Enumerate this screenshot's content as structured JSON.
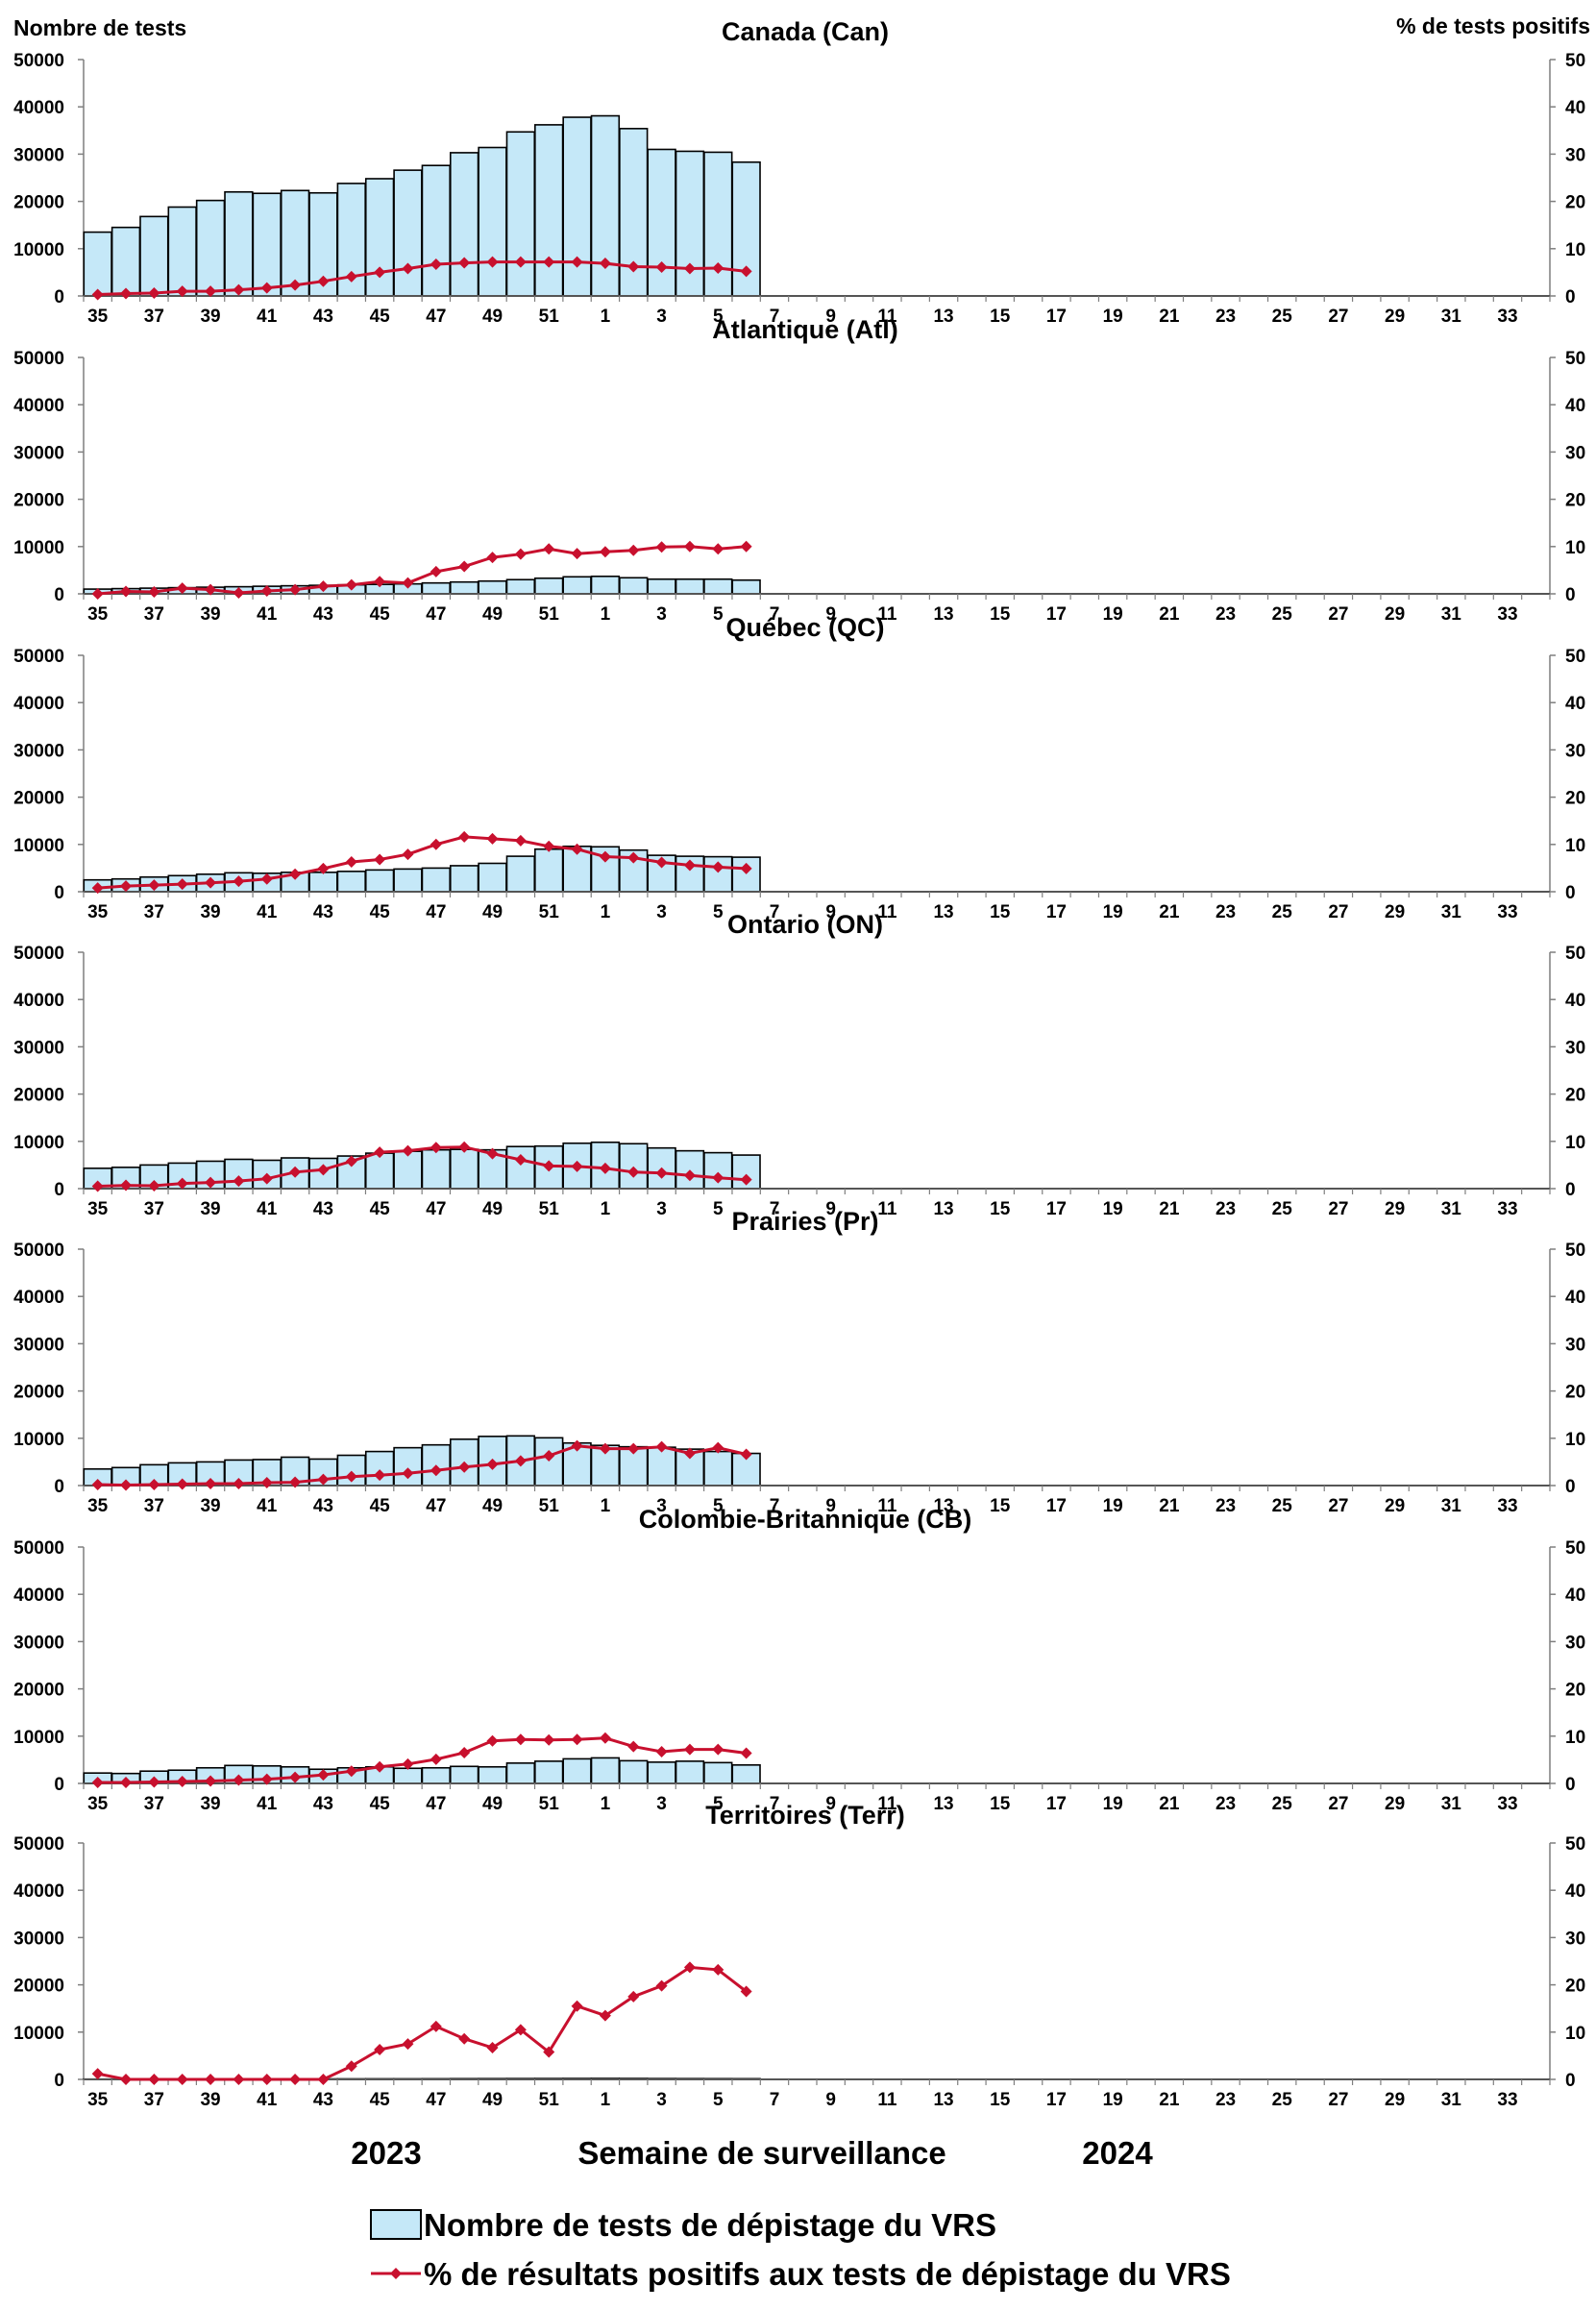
{
  "figure": {
    "left_axis_label": "Nombre de tests",
    "right_axis_label": "% de tests positifs",
    "x_axis_label": "Semaine de surveillance",
    "year_labels": [
      "2023",
      "2024"
    ]
  },
  "legend": {
    "bars_label": "Nombre de tests de dépistage du VRS",
    "line_label": "% de résultats positifs aux tests de dépistage du VRS"
  },
  "colors": {
    "bar_fill": "#c5e8f8",
    "bar_stroke": "#000000",
    "line": "#c8102e"
  },
  "chart_data": [
    {
      "type": "bar",
      "title": "Canada (Can)",
      "weeks": [
        "35",
        "36",
        "37",
        "38",
        "39",
        "40",
        "41",
        "42",
        "43",
        "44",
        "45",
        "46",
        "47",
        "48",
        "49",
        "50",
        "51",
        "52",
        "1",
        "2",
        "3",
        "4",
        "5",
        "6",
        "7",
        "8",
        "9",
        "10",
        "11",
        "12",
        "13",
        "14",
        "15",
        "16",
        "17",
        "18",
        "19",
        "20",
        "21",
        "22",
        "23",
        "24",
        "25",
        "26",
        "27",
        "28",
        "29",
        "30",
        "31",
        "32",
        "33",
        "34"
      ],
      "x_tick_labels": [
        "35",
        "37",
        "39",
        "41",
        "43",
        "45",
        "47",
        "49",
        "51",
        "1",
        "3",
        "5",
        "7",
        "9",
        "11",
        "13",
        "15",
        "17",
        "19",
        "21",
        "23",
        "25",
        "27",
        "29",
        "31",
        "33"
      ],
      "ylim": [
        0,
        50000
      ],
      "y_ticks": [
        0,
        10000,
        20000,
        30000,
        40000,
        50000
      ],
      "y2lim": [
        0,
        50
      ],
      "y2_ticks": [
        0,
        10,
        20,
        30,
        40,
        50
      ],
      "series": [
        {
          "name": "Nombre de tests de dépistage du VRS",
          "type": "bar",
          "values": [
            13500,
            14500,
            16800,
            18800,
            20200,
            22000,
            21700,
            22300,
            21800,
            23800,
            24800,
            26600,
            27600,
            30300,
            31400,
            34700,
            36200,
            37800,
            38100,
            35400,
            31000,
            30600,
            30400,
            28300
          ]
        },
        {
          "name": "% de résultats positifs aux tests de dépistage du VRS",
          "type": "line",
          "values": [
            0.3,
            0.5,
            0.6,
            1.0,
            1.0,
            1.3,
            1.7,
            2.3,
            3.1,
            4.1,
            5.0,
            5.8,
            6.7,
            7.0,
            7.2,
            7.2,
            7.2,
            7.2,
            6.9,
            6.2,
            6.1,
            5.8,
            5.9,
            5.2
          ]
        }
      ]
    },
    {
      "type": "bar",
      "title": "Atlantique (Atl)",
      "weeks": [
        "35",
        "36",
        "37",
        "38",
        "39",
        "40",
        "41",
        "42",
        "43",
        "44",
        "45",
        "46",
        "47",
        "48",
        "49",
        "50",
        "51",
        "52",
        "1",
        "2",
        "3",
        "4",
        "5",
        "6",
        "7",
        "8",
        "9",
        "10",
        "11",
        "12",
        "13",
        "14",
        "15",
        "16",
        "17",
        "18",
        "19",
        "20",
        "21",
        "22",
        "23",
        "24",
        "25",
        "26",
        "27",
        "28",
        "29",
        "30",
        "31",
        "32",
        "33",
        "34"
      ],
      "x_tick_labels": [
        "35",
        "37",
        "39",
        "41",
        "43",
        "45",
        "47",
        "49",
        "51",
        "1",
        "3",
        "5",
        "7",
        "9",
        "11",
        "13",
        "15",
        "17",
        "19",
        "21",
        "23",
        "25",
        "27",
        "29",
        "31",
        "33"
      ],
      "ylim": [
        0,
        50000
      ],
      "y_ticks": [
        0,
        10000,
        20000,
        30000,
        40000,
        50000
      ],
      "y2lim": [
        0,
        50
      ],
      "y2_ticks": [
        0,
        10,
        20,
        30,
        40,
        50
      ],
      "series": [
        {
          "name": "Nombre de tests de dépistage du VRS",
          "type": "bar",
          "values": [
            1000,
            1100,
            1200,
            1300,
            1400,
            1500,
            1600,
            1700,
            1800,
            1900,
            2000,
            2100,
            2300,
            2500,
            2700,
            3000,
            3300,
            3600,
            3700,
            3400,
            3100,
            3100,
            3100,
            2900
          ]
        },
        {
          "name": "% de résultats positifs aux tests de dépistage du VRS",
          "type": "line",
          "values": [
            0.0,
            0.5,
            0.4,
            1.2,
            0.9,
            0.2,
            0.6,
            0.9,
            1.6,
            1.9,
            2.6,
            2.3,
            4.7,
            5.8,
            7.7,
            8.4,
            9.5,
            8.5,
            8.9,
            9.2,
            9.9,
            10.0,
            9.5,
            10.0
          ]
        }
      ]
    },
    {
      "type": "bar",
      "title": "Québec (QC)",
      "weeks": [
        "35",
        "36",
        "37",
        "38",
        "39",
        "40",
        "41",
        "42",
        "43",
        "44",
        "45",
        "46",
        "47",
        "48",
        "49",
        "50",
        "51",
        "52",
        "1",
        "2",
        "3",
        "4",
        "5",
        "6",
        "7",
        "8",
        "9",
        "10",
        "11",
        "12",
        "13",
        "14",
        "15",
        "16",
        "17",
        "18",
        "19",
        "20",
        "21",
        "22",
        "23",
        "24",
        "25",
        "26",
        "27",
        "28",
        "29",
        "30",
        "31",
        "32",
        "33",
        "34"
      ],
      "x_tick_labels": [
        "35",
        "37",
        "39",
        "41",
        "43",
        "45",
        "47",
        "49",
        "51",
        "1",
        "3",
        "5",
        "7",
        "9",
        "11",
        "13",
        "15",
        "17",
        "19",
        "21",
        "23",
        "25",
        "27",
        "29",
        "31",
        "33"
      ],
      "ylim": [
        0,
        50000
      ],
      "y_ticks": [
        0,
        10000,
        20000,
        30000,
        40000,
        50000
      ],
      "y2lim": [
        0,
        50
      ],
      "y2_ticks": [
        0,
        10,
        20,
        30,
        40,
        50
      ],
      "series": [
        {
          "name": "Nombre de tests de dépistage du VRS",
          "type": "bar",
          "values": [
            2500,
            2700,
            3100,
            3400,
            3700,
            4000,
            3900,
            4100,
            4100,
            4300,
            4600,
            4800,
            5000,
            5500,
            6000,
            7500,
            9000,
            9600,
            9500,
            8800,
            7700,
            7500,
            7400,
            7300
          ]
        },
        {
          "name": "% de résultats positifs aux tests de dépistage du VRS",
          "type": "line",
          "values": [
            0.8,
            1.2,
            1.4,
            1.6,
            1.9,
            2.2,
            2.7,
            3.7,
            4.9,
            6.3,
            6.8,
            7.9,
            10.0,
            11.6,
            11.2,
            10.8,
            9.6,
            9.0,
            7.4,
            7.2,
            6.2,
            5.6,
            5.2,
            4.9
          ]
        }
      ]
    },
    {
      "type": "bar",
      "title": "Ontario (ON)",
      "weeks": [
        "35",
        "36",
        "37",
        "38",
        "39",
        "40",
        "41",
        "42",
        "43",
        "44",
        "45",
        "46",
        "47",
        "48",
        "49",
        "50",
        "51",
        "52",
        "1",
        "2",
        "3",
        "4",
        "5",
        "6",
        "7",
        "8",
        "9",
        "10",
        "11",
        "12",
        "13",
        "14",
        "15",
        "16",
        "17",
        "18",
        "19",
        "20",
        "21",
        "22",
        "23",
        "24",
        "25",
        "26",
        "27",
        "28",
        "29",
        "30",
        "31",
        "32",
        "33",
        "34"
      ],
      "x_tick_labels": [
        "35",
        "37",
        "39",
        "41",
        "43",
        "45",
        "47",
        "49",
        "51",
        "1",
        "3",
        "5",
        "7",
        "9",
        "11",
        "13",
        "15",
        "17",
        "19",
        "21",
        "23",
        "25",
        "27",
        "29",
        "31",
        "33"
      ],
      "ylim": [
        0,
        50000
      ],
      "y_ticks": [
        0,
        10000,
        20000,
        30000,
        40000,
        50000
      ],
      "y2lim": [
        0,
        50
      ],
      "y2_ticks": [
        0,
        10,
        20,
        30,
        40,
        50
      ],
      "series": [
        {
          "name": "Nombre de tests de dépistage du VRS",
          "type": "bar",
          "values": [
            4300,
            4500,
            5000,
            5400,
            5800,
            6200,
            6000,
            6500,
            6400,
            6900,
            7500,
            7900,
            8200,
            8300,
            8200,
            8900,
            9000,
            9600,
            9800,
            9500,
            8600,
            8000,
            7600,
            7100
          ]
        },
        {
          "name": "% de résultats positifs aux tests de dépistage du VRS",
          "type": "line",
          "values": [
            0.5,
            0.7,
            0.6,
            1.1,
            1.3,
            1.6,
            2.1,
            3.5,
            4.0,
            5.8,
            7.7,
            8.0,
            8.7,
            8.8,
            7.4,
            6.1,
            4.8,
            4.7,
            4.3,
            3.5,
            3.3,
            2.8,
            2.3,
            1.9
          ]
        }
      ]
    },
    {
      "type": "bar",
      "title": "Prairies (Pr)",
      "weeks": [
        "35",
        "36",
        "37",
        "38",
        "39",
        "40",
        "41",
        "42",
        "43",
        "44",
        "45",
        "46",
        "47",
        "48",
        "49",
        "50",
        "51",
        "52",
        "1",
        "2",
        "3",
        "4",
        "5",
        "6",
        "7",
        "8",
        "9",
        "10",
        "11",
        "12",
        "13",
        "14",
        "15",
        "16",
        "17",
        "18",
        "19",
        "20",
        "21",
        "22",
        "23",
        "24",
        "25",
        "26",
        "27",
        "28",
        "29",
        "30",
        "31",
        "32",
        "33",
        "34"
      ],
      "x_tick_labels": [
        "35",
        "37",
        "39",
        "41",
        "43",
        "45",
        "47",
        "49",
        "51",
        "1",
        "3",
        "5",
        "7",
        "9",
        "11",
        "13",
        "15",
        "17",
        "19",
        "21",
        "23",
        "25",
        "27",
        "29",
        "31",
        "33"
      ],
      "ylim": [
        0,
        50000
      ],
      "y_ticks": [
        0,
        10000,
        20000,
        30000,
        40000,
        50000
      ],
      "y2lim": [
        0,
        50
      ],
      "y2_ticks": [
        0,
        10,
        20,
        30,
        40,
        50
      ],
      "series": [
        {
          "name": "Nombre de tests de dépistage du VRS",
          "type": "bar",
          "values": [
            3500,
            3800,
            4400,
            4800,
            5000,
            5400,
            5500,
            6000,
            5600,
            6400,
            7200,
            8000,
            8600,
            9800,
            10400,
            10500,
            10100,
            9000,
            8500,
            8200,
            8100,
            7700,
            7200,
            6800
          ]
        },
        {
          "name": "% de résultats positifs aux tests de dépistage du VRS",
          "type": "line",
          "values": [
            0.2,
            0.1,
            0.2,
            0.3,
            0.4,
            0.4,
            0.6,
            0.7,
            1.3,
            1.9,
            2.2,
            2.6,
            3.2,
            3.9,
            4.5,
            5.2,
            6.3,
            8.4,
            7.8,
            7.8,
            8.2,
            6.8,
            8.0,
            6.6
          ]
        }
      ]
    },
    {
      "type": "bar",
      "title": "Colombie-Britannique (CB)",
      "weeks": [
        "35",
        "36",
        "37",
        "38",
        "39",
        "40",
        "41",
        "42",
        "43",
        "44",
        "45",
        "46",
        "47",
        "48",
        "49",
        "50",
        "51",
        "52",
        "1",
        "2",
        "3",
        "4",
        "5",
        "6",
        "7",
        "8",
        "9",
        "10",
        "11",
        "12",
        "13",
        "14",
        "15",
        "16",
        "17",
        "18",
        "19",
        "20",
        "21",
        "22",
        "23",
        "24",
        "25",
        "26",
        "27",
        "28",
        "29",
        "30",
        "31",
        "32",
        "33",
        "34"
      ],
      "x_tick_labels": [
        "35",
        "37",
        "39",
        "41",
        "43",
        "45",
        "47",
        "49",
        "51",
        "1",
        "3",
        "5",
        "7",
        "9",
        "11",
        "13",
        "15",
        "17",
        "19",
        "21",
        "23",
        "25",
        "27",
        "29",
        "31",
        "33"
      ],
      "ylim": [
        0,
        50000
      ],
      "y_ticks": [
        0,
        10000,
        20000,
        30000,
        40000,
        50000
      ],
      "y2lim": [
        0,
        50
      ],
      "y2_ticks": [
        0,
        10,
        20,
        30,
        40,
        50
      ],
      "series": [
        {
          "name": "Nombre de tests de dépistage du VRS",
          "type": "bar",
          "values": [
            2200,
            2100,
            2600,
            2800,
            3300,
            3800,
            3700,
            3500,
            3000,
            3300,
            3500,
            3200,
            3300,
            3600,
            3500,
            4300,
            4700,
            5200,
            5400,
            4800,
            4500,
            4700,
            4400,
            3900
          ]
        },
        {
          "name": "% de résultats positifs aux tests de dépistage du VRS",
          "type": "line",
          "values": [
            0.2,
            0.2,
            0.3,
            0.4,
            0.5,
            0.7,
            0.9,
            1.3,
            1.8,
            2.6,
            3.5,
            4.1,
            5.1,
            6.5,
            9.0,
            9.3,
            9.2,
            9.3,
            9.6,
            7.8,
            6.7,
            7.2,
            7.2,
            6.4
          ]
        }
      ]
    },
    {
      "type": "bar",
      "title": "Territoires (Terr)",
      "weeks": [
        "35",
        "36",
        "37",
        "38",
        "39",
        "40",
        "41",
        "42",
        "43",
        "44",
        "45",
        "46",
        "47",
        "48",
        "49",
        "50",
        "51",
        "52",
        "1",
        "2",
        "3",
        "4",
        "5",
        "6",
        "7",
        "8",
        "9",
        "10",
        "11",
        "12",
        "13",
        "14",
        "15",
        "16",
        "17",
        "18",
        "19",
        "20",
        "21",
        "22",
        "23",
        "24",
        "25",
        "26",
        "27",
        "28",
        "29",
        "30",
        "31",
        "32",
        "33",
        "34"
      ],
      "x_tick_labels": [
        "35",
        "37",
        "39",
        "41",
        "43",
        "45",
        "47",
        "49",
        "51",
        "1",
        "3",
        "5",
        "7",
        "9",
        "11",
        "13",
        "15",
        "17",
        "19",
        "21",
        "23",
        "25",
        "27",
        "29",
        "31",
        "33"
      ],
      "ylim": [
        0,
        50000
      ],
      "y_ticks": [
        0,
        10000,
        20000,
        30000,
        40000,
        50000
      ],
      "y2lim": [
        0,
        50
      ],
      "y2_ticks": [
        0,
        10,
        20,
        30,
        40,
        50
      ],
      "series": [
        {
          "name": "Nombre de tests de dépistage du VRS",
          "type": "bar",
          "values": [
            60,
            60,
            70,
            80,
            80,
            90,
            90,
            90,
            100,
            110,
            120,
            120,
            130,
            150,
            160,
            170,
            180,
            190,
            200,
            190,
            170,
            160,
            150,
            140
          ]
        },
        {
          "name": "% de résultats positifs aux tests de dépistage du VRS",
          "type": "line",
          "values": [
            1.2,
            0.0,
            0.0,
            0.0,
            0.0,
            0.0,
            0.0,
            0.0,
            0.0,
            2.8,
            6.3,
            7.5,
            11.2,
            8.6,
            6.7,
            10.5,
            5.8,
            15.5,
            13.5,
            17.5,
            19.8,
            23.7,
            23.2,
            18.6
          ]
        }
      ]
    }
  ]
}
